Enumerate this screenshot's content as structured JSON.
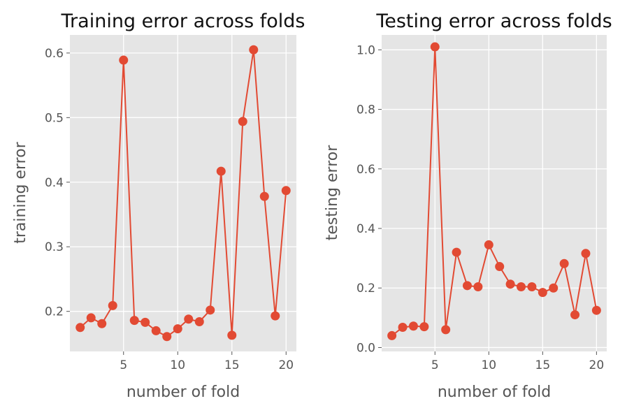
{
  "colors": {
    "panel": "#e5e5e5",
    "series": "#e24a33",
    "text": "#555555"
  },
  "chart_data": [
    {
      "type": "line",
      "title": "Training error across folds",
      "xlabel": "number of fold",
      "ylabel": "training error",
      "xlim": [
        0.05,
        20.95
      ],
      "ylim": [
        0.138,
        0.628
      ],
      "xticks": [
        5,
        10,
        15,
        20
      ],
      "yticks": [
        0.2,
        0.3,
        0.4,
        0.5,
        0.6
      ],
      "ytick_labels": [
        "0.2",
        "0.3",
        "0.4",
        "0.5",
        "0.6"
      ],
      "grid": true,
      "series": [
        {
          "x": [
            1,
            2,
            3,
            4,
            5,
            6,
            7,
            8,
            9,
            10,
            11,
            12,
            13,
            14,
            15,
            16,
            17,
            18,
            19,
            20
          ],
          "values": [
            0.175,
            0.19,
            0.181,
            0.209,
            0.589,
            0.186,
            0.183,
            0.17,
            0.161,
            0.173,
            0.188,
            0.184,
            0.202,
            0.417,
            0.163,
            0.494,
            0.605,
            0.378,
            0.193,
            0.387
          ]
        }
      ]
    },
    {
      "type": "line",
      "title": "Testing error across folds",
      "xlabel": "number of fold",
      "ylabel": "testing error",
      "xlim": [
        0.05,
        20.95
      ],
      "ylim": [
        -0.013,
        1.05
      ],
      "xticks": [
        5,
        10,
        15,
        20
      ],
      "yticks": [
        0.0,
        0.2,
        0.4,
        0.6,
        0.8,
        1.0
      ],
      "ytick_labels": [
        "0.0",
        "0.2",
        "0.4",
        "0.6",
        "0.8",
        "1.0"
      ],
      "grid": true,
      "series": [
        {
          "x": [
            1,
            2,
            3,
            4,
            5,
            6,
            7,
            8,
            9,
            10,
            11,
            12,
            13,
            14,
            15,
            16,
            17,
            18,
            19,
            20
          ],
          "values": [
            0.04,
            0.068,
            0.072,
            0.07,
            1.01,
            0.06,
            0.32,
            0.208,
            0.204,
            0.345,
            0.272,
            0.213,
            0.204,
            0.204,
            0.185,
            0.2,
            0.282,
            0.11,
            0.316,
            0.125
          ]
        }
      ]
    }
  ]
}
